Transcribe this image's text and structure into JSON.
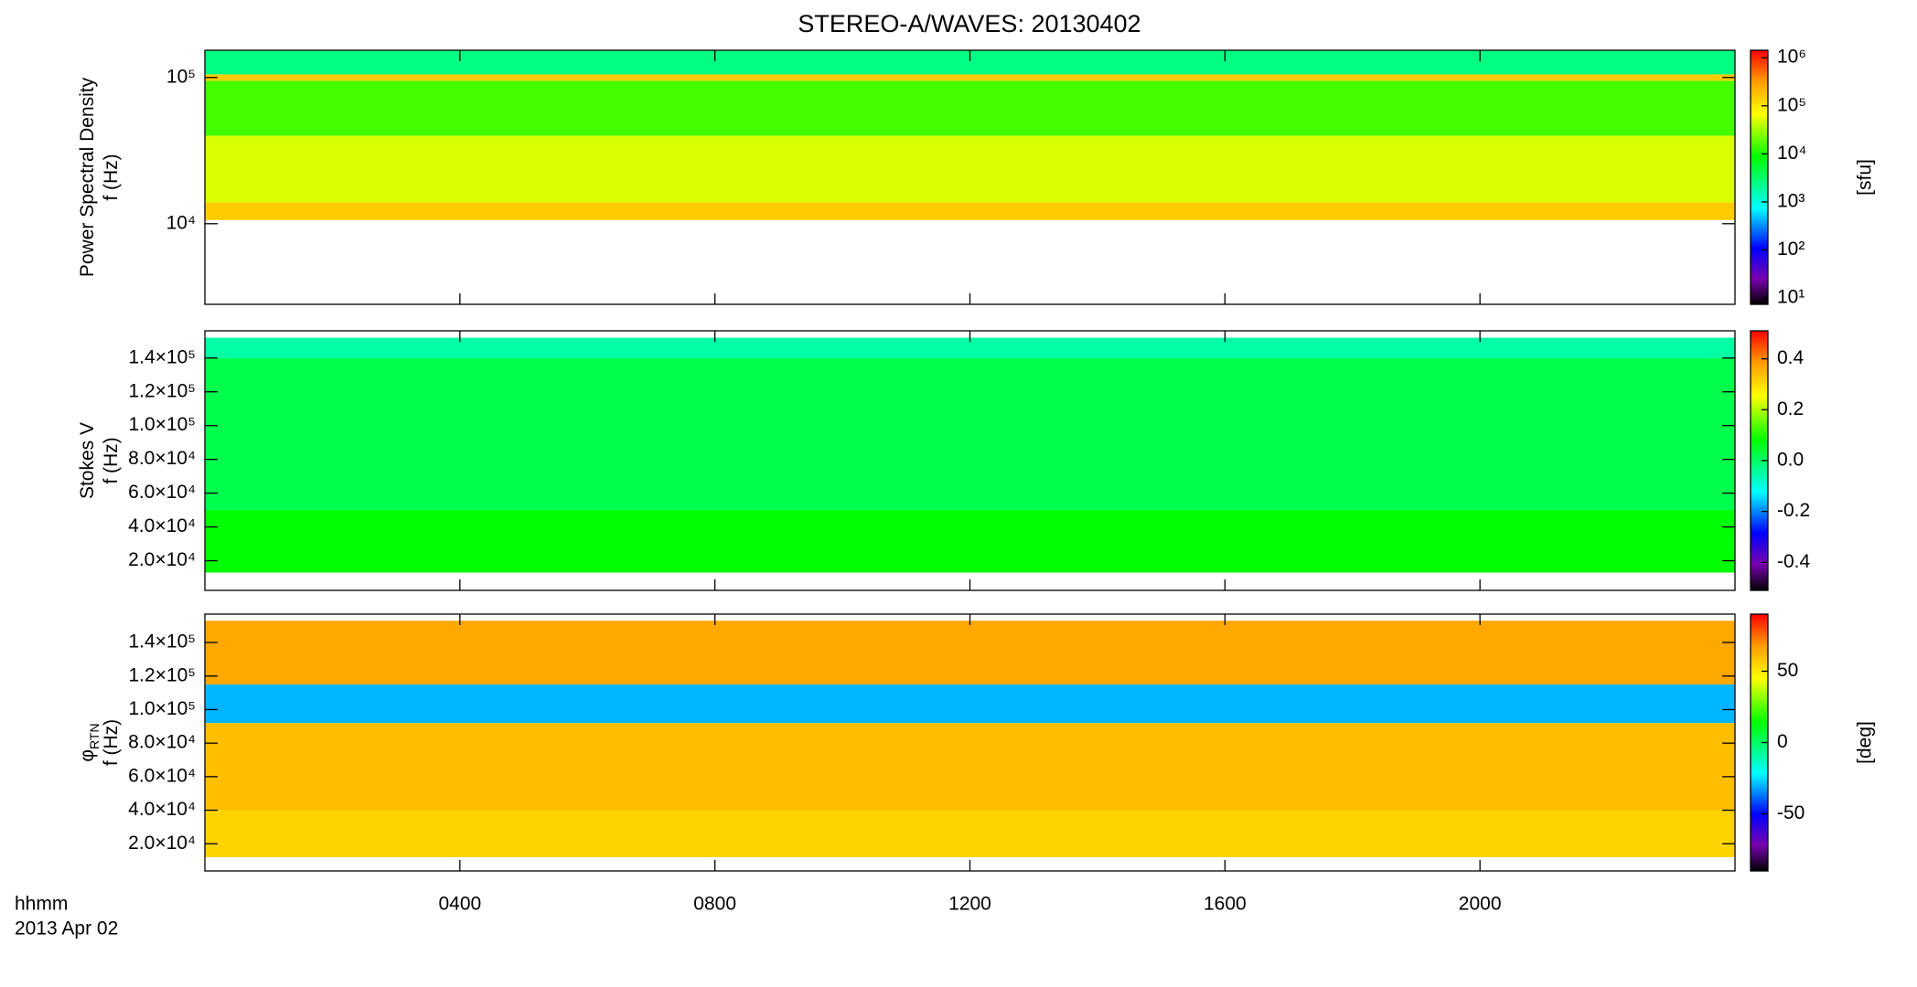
{
  "title": "STEREO-A/WAVES: 20130402",
  "xaxis": {
    "label": "hhmm",
    "date": "2013 Apr 02",
    "xlim": [
      0,
      24
    ],
    "xticks": [
      {
        "value": 4,
        "label": "0400"
      },
      {
        "value": 8,
        "label": "0800"
      },
      {
        "value": 12,
        "label": "1200"
      },
      {
        "value": 16,
        "label": "1600"
      },
      {
        "value": 20,
        "label": "2000"
      }
    ]
  },
  "chart_data": [
    {
      "type": "heatmap",
      "ylabel": [
        "Power Spectral Density",
        "f (Hz)"
      ],
      "ylog": true,
      "ylim": [
        2810,
        153500
      ],
      "yticks": [
        {
          "value": 10000,
          "label": "10⁴"
        },
        {
          "value": 100000,
          "label": "10⁵"
        }
      ],
      "band_edges": [
        10600,
        14000,
        40000,
        95000,
        105000,
        153500
      ],
      "values": [
        150000,
        50000,
        15000,
        150000,
        2500
      ],
      "clog": true,
      "clim": [
        7.4,
        1430000
      ],
      "clabel": "[sfu]",
      "cticks": [
        {
          "value": 10,
          "label": "10¹"
        },
        {
          "value": 100,
          "label": "10²"
        },
        {
          "value": 1000,
          "label": "10³"
        },
        {
          "value": 10000,
          "label": "10⁴"
        },
        {
          "value": 100000,
          "label": "10⁵"
        },
        {
          "value": 1000000,
          "label": "10⁶"
        }
      ]
    },
    {
      "type": "heatmap",
      "ylabel": [
        "Stokes V",
        "f (Hz)"
      ],
      "ylog": false,
      "ylim": [
        2440,
        156100
      ],
      "yticks": [
        {
          "value": 20000,
          "label": "2.0×10⁴"
        },
        {
          "value": 40000,
          "label": "4.0×10⁴"
        },
        {
          "value": 60000,
          "label": "6.0×10⁴"
        },
        {
          "value": 80000,
          "label": "8.0×10⁴"
        },
        {
          "value": 100000,
          "label": "1.0×10⁵"
        },
        {
          "value": 120000,
          "label": "1.2×10⁵"
        },
        {
          "value": 140000,
          "label": "1.4×10⁵"
        }
      ],
      "band_edges": [
        13000,
        50000,
        140000,
        152000
      ],
      "values": [
        0.08,
        0.02,
        -0.05
      ],
      "clog": false,
      "clim": [
        -0.51,
        0.51
      ],
      "cticks": [
        -0.4,
        -0.2,
        {
          "value": 0,
          "label": "0.0"
        },
        0.2,
        0.4
      ]
    },
    {
      "type": "heatmap",
      "ylabel": [
        "φ",
        "f (Hz)"
      ],
      "ylabel_sub": "RTN",
      "ylog": false,
      "ylim": [
        3800,
        156900
      ],
      "yticks": [
        {
          "value": 20000,
          "label": "2.0×10⁴"
        },
        {
          "value": 40000,
          "label": "4.0×10⁴"
        },
        {
          "value": 60000,
          "label": "6.0×10⁴"
        },
        {
          "value": 80000,
          "label": "8.0×10⁴"
        },
        {
          "value": 100000,
          "label": "1.0×10⁵"
        },
        {
          "value": 120000,
          "label": "1.2×10⁵"
        },
        {
          "value": 140000,
          "label": "1.4×10⁵"
        }
      ],
      "band_edges": [
        12000,
        40000,
        92000,
        115000,
        153000
      ],
      "values": [
        55,
        60,
        -30,
        65
      ],
      "clog": false,
      "clim": [
        -90,
        90
      ],
      "clabel": "[deg]",
      "cticks": [
        -50,
        0,
        50
      ]
    }
  ]
}
